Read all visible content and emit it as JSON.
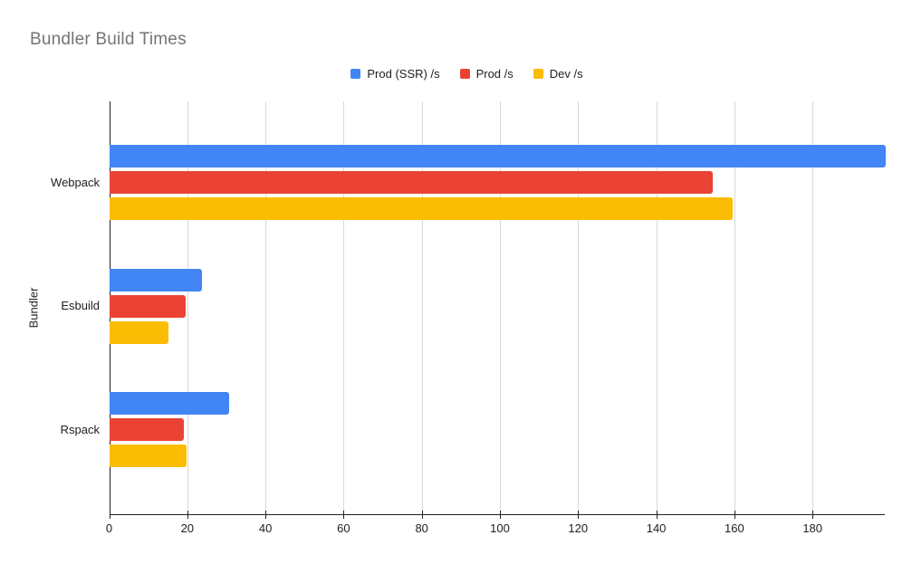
{
  "chart_data": {
    "type": "bar",
    "orientation": "horizontal",
    "title": "Bundler Build Times",
    "categories": [
      "Webpack",
      "Esbuild",
      "Rspack"
    ],
    "series": [
      {
        "name": "Prod (SSR) /s",
        "color": "#4285F4",
        "values": [
          198.5,
          23.6,
          30.7
        ]
      },
      {
        "name": "Prod /s",
        "color": "#EA4335",
        "values": [
          154.4,
          19.4,
          18.9
        ]
      },
      {
        "name": "Dev /s",
        "color": "#FBBC04",
        "values": [
          159.4,
          15.1,
          19.8
        ]
      }
    ],
    "xlabel": "",
    "ylabel": "Bundler",
    "xlim": [
      0,
      198.5
    ],
    "x_ticks": [
      0,
      20,
      40,
      60,
      80,
      100,
      120,
      140,
      160,
      180
    ],
    "grid": true,
    "legend_position": "top"
  },
  "colors": {
    "background": "#ffffff",
    "title": "#757575",
    "axis": "#212121",
    "gridline": "#d9d9d9",
    "tick_label": "#202124",
    "category_label": "#202124",
    "legend_text": "#202124"
  }
}
